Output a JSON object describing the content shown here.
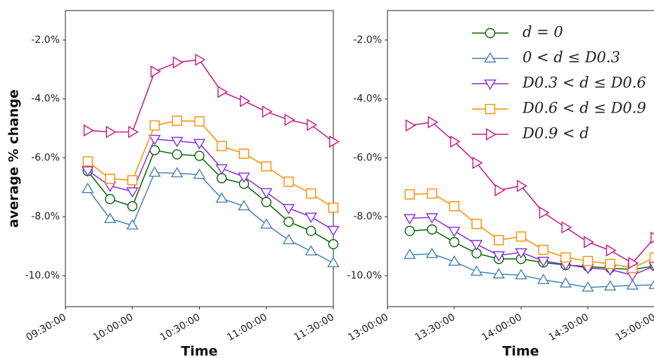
{
  "chart_data": [
    {
      "type": "line",
      "x": [
        "09:40:00",
        "09:50:00",
        "10:00:00",
        "10:10:00",
        "10:20:00",
        "10:30:00",
        "10:40:00",
        "10:50:00",
        "11:00:00",
        "11:10:00",
        "11:20:00",
        "11:30:00"
      ],
      "xlim": [
        "09:30:00",
        "11:30:00"
      ],
      "xticks": [
        "09:30:00",
        "10:00:00",
        "10:30:00",
        "11:00:00",
        "11:30:00"
      ],
      "ylim": [
        -11.05,
        -1.0
      ],
      "yticks": [
        {
          "value": -2,
          "label": "-2.0%"
        },
        {
          "value": -4,
          "label": "-4.0%"
        },
        {
          "value": -6,
          "label": "-6.0%"
        },
        {
          "value": -8,
          "label": "-8.0%"
        },
        {
          "value": -10,
          "label": "-10.0%"
        }
      ],
      "xlabel": "Time",
      "ylabel": "average % change",
      "series": [
        {
          "name": "d = 0",
          "color": "#006400",
          "marker": "circle",
          "values": [
            -6.45,
            -7.4,
            -7.64,
            -5.74,
            -5.88,
            -5.93,
            -6.69,
            -6.88,
            -7.5,
            -8.17,
            -8.48,
            -8.93
          ]
        },
        {
          "name": "0 < d ≤ D0.3",
          "color": "#4682b4",
          "marker": "triangle-up",
          "values": [
            -7.05,
            -8.07,
            -8.29,
            -6.5,
            -6.52,
            -6.57,
            -7.38,
            -7.64,
            -8.26,
            -8.79,
            -9.17,
            -9.57
          ]
        },
        {
          "name": "D0.3 < d ≤ D0.6",
          "color": "#8a2be2",
          "marker": "triangle-down",
          "values": [
            -6.43,
            -6.95,
            -7.14,
            -5.36,
            -5.43,
            -5.5,
            -6.36,
            -6.64,
            -7.17,
            -7.71,
            -8.0,
            -8.45
          ]
        },
        {
          "name": "D0.6 < d ≤ D0.9",
          "color": "#ff8c00",
          "marker": "square",
          "values": [
            -6.12,
            -6.71,
            -6.76,
            -4.9,
            -4.74,
            -4.76,
            -5.6,
            -5.86,
            -6.29,
            -6.81,
            -7.21,
            -7.69
          ]
        },
        {
          "name": "D0.9 < d",
          "color": "#c71585",
          "marker": "triangle-right",
          "values": [
            -5.07,
            -5.12,
            -5.12,
            -3.07,
            -2.76,
            -2.67,
            -3.76,
            -4.07,
            -4.43,
            -4.71,
            -4.88,
            -5.45
          ]
        }
      ]
    },
    {
      "type": "line",
      "x": [
        "13:10:00",
        "13:20:00",
        "13:30:00",
        "13:40:00",
        "13:50:00",
        "14:00:00",
        "14:10:00",
        "14:20:00",
        "14:30:00",
        "14:40:00",
        "14:50:00",
        "15:00:00"
      ],
      "xlim": [
        "13:00:00",
        "15:00:00"
      ],
      "xticks": [
        "13:00:00",
        "13:30:00",
        "14:00:00",
        "14:30:00",
        "15:00:00"
      ],
      "ylim": [
        -11.05,
        -1.0
      ],
      "yticks": [
        {
          "value": -2,
          "label": "-2.0%"
        },
        {
          "value": -4,
          "label": "-4.0%"
        },
        {
          "value": -6,
          "label": "-6.0%"
        },
        {
          "value": -8,
          "label": "-8.0%"
        },
        {
          "value": -10,
          "label": "-10.0%"
        }
      ],
      "xlabel": "Time",
      "legend": "upper right",
      "series": [
        {
          "name": "d = 0",
          "color": "#006400",
          "marker": "circle",
          "values": [
            -8.48,
            -8.43,
            -8.86,
            -9.24,
            -9.43,
            -9.43,
            -9.55,
            -9.64,
            -9.69,
            -9.74,
            -9.79,
            -9.67
          ]
        },
        {
          "name": "0 < d ≤ D0.3",
          "color": "#4682b4",
          "marker": "triangle-up",
          "values": [
            -9.29,
            -9.26,
            -9.52,
            -9.86,
            -9.95,
            -9.98,
            -10.14,
            -10.26,
            -10.4,
            -10.36,
            -10.33,
            -10.31
          ]
        },
        {
          "name": "D0.3 < d ≤ D0.6",
          "color": "#8a2be2",
          "marker": "triangle-down",
          "values": [
            -8.05,
            -8.02,
            -8.48,
            -8.93,
            -9.31,
            -9.21,
            -9.5,
            -9.62,
            -9.74,
            -9.79,
            -9.98,
            -9.67
          ]
        },
        {
          "name": "D0.6 < d ≤ D0.9",
          "color": "#ff8c00",
          "marker": "square",
          "values": [
            -7.24,
            -7.21,
            -7.64,
            -8.24,
            -8.79,
            -8.67,
            -9.12,
            -9.38,
            -9.5,
            -9.6,
            -9.74,
            -9.38
          ]
        },
        {
          "name": "D0.9 < d",
          "color": "#c71585",
          "marker": "triangle-right",
          "values": [
            -4.9,
            -4.79,
            -5.45,
            -6.17,
            -7.1,
            -6.95,
            -7.86,
            -8.36,
            -8.86,
            -9.14,
            -9.57,
            -8.71
          ]
        }
      ]
    }
  ]
}
